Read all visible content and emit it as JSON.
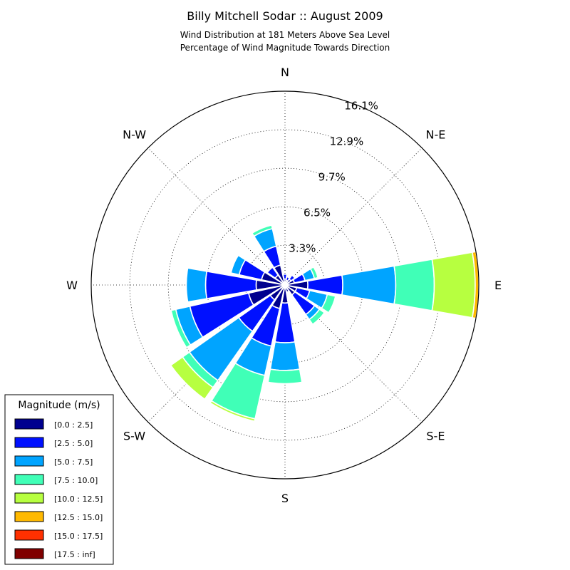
{
  "chart_data": {
    "type": "windrose",
    "title": "Billy Mitchell Sodar :: August 2009",
    "subtitle_lines": [
      "Wind Distribution at 181 Meters Above Sea Level",
      "Percentage of Wind Magnitude Towards Direction"
    ],
    "direction_labels": [
      "N",
      "N-E",
      "E",
      "S-E",
      "S",
      "S-W",
      "W",
      "N-W"
    ],
    "radial_ticks": [
      "3.3%",
      "6.5%",
      "9.7%",
      "12.9%",
      "16.1%"
    ],
    "radial_tick_values": [
      3.3,
      6.5,
      9.7,
      12.9,
      16.1
    ],
    "r_max": 16.1,
    "grid": true,
    "legend": {
      "title": "Magnitude (m/s)",
      "placement": "bottom-left",
      "entries": [
        {
          "label": "[0.0 : 2.5]",
          "color": "#00008f"
        },
        {
          "label": "[2.5 : 5.0]",
          "color": "#0010ff"
        },
        {
          "label": "[5.0 : 7.5]",
          "color": "#00a4ff"
        },
        {
          "label": "[7.5 : 10.0]",
          "color": "#40ffb7"
        },
        {
          "label": "[10.0 : 12.5]",
          "color": "#b7ff40"
        },
        {
          "label": "[12.5 : 15.0]",
          "color": "#ffb900"
        },
        {
          "label": "[15.0 : 17.5]",
          "color": "#ff3000"
        },
        {
          "label": "[17.5 : inf]",
          "color": "#800000"
        }
      ]
    },
    "series": [
      {
        "direction_deg": 0.0,
        "cumulative": [
          0.5,
          0.9
        ]
      },
      {
        "direction_deg": 22.5,
        "cumulative": [
          0.4,
          0.7
        ]
      },
      {
        "direction_deg": 45.0,
        "cumulative": [
          0.6,
          1.0
        ]
      },
      {
        "direction_deg": 67.5,
        "cumulative": [
          0.8,
          1.7,
          2.5,
          2.8
        ]
      },
      {
        "direction_deg": 90.0,
        "cumulative": [
          1.9,
          4.8,
          9.2,
          12.4,
          15.8,
          16.1
        ]
      },
      {
        "direction_deg": 112.5,
        "cumulative": [
          1.0,
          2.1,
          3.6,
          4.3
        ]
      },
      {
        "direction_deg": 135.0,
        "cumulative": [
          1.0,
          3.0,
          3.5,
          4.0
        ]
      },
      {
        "direction_deg": 157.5,
        "cumulative": [
          0.6
        ]
      },
      {
        "direction_deg": 180.0,
        "cumulative": [
          1.5,
          4.8,
          7.1,
          8.2
        ]
      },
      {
        "direction_deg": 202.5,
        "cumulative": [
          2.0,
          5.2,
          7.7,
          11.4,
          11.6
        ]
      },
      {
        "direction_deg": 225.0,
        "cumulative": [
          1.5,
          4.7,
          9.7,
          10.4,
          11.6
        ]
      },
      {
        "direction_deg": 247.5,
        "cumulative": [
          3.1,
          8.1,
          9.3,
          9.7
        ]
      },
      {
        "direction_deg": 270.0,
        "cumulative": [
          2.4,
          6.6,
          8.2
        ]
      },
      {
        "direction_deg": 292.5,
        "cumulative": [
          2.0,
          3.9,
          4.6
        ]
      },
      {
        "direction_deg": 315.0,
        "cumulative": [
          1.0,
          1.8
        ]
      },
      {
        "direction_deg": 337.5,
        "cumulative": [
          1.7,
          3.3,
          4.8,
          5.1
        ]
      }
    ]
  }
}
